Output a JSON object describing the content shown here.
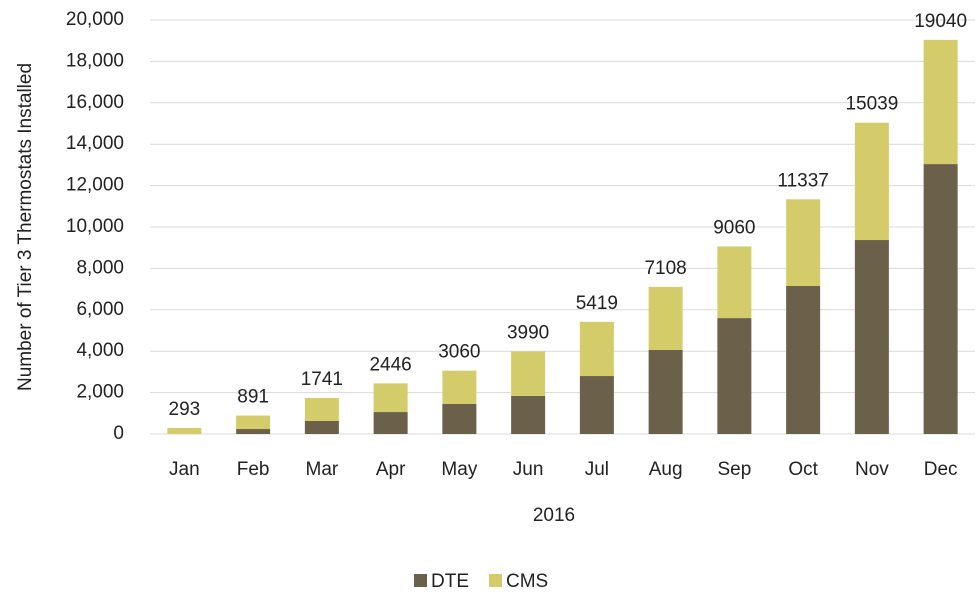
{
  "chart_data": {
    "type": "stacked-bar",
    "y_label": "Number of Tier 3 Thermostats Installed",
    "x_label": "2016",
    "categories": [
      "Jan",
      "Feb",
      "Mar",
      "Apr",
      "May",
      "Jun",
      "Jul",
      "Aug",
      "Sep",
      "Oct",
      "Nov",
      "Dec"
    ],
    "series": [
      {
        "name": "DTE",
        "color": "#6b604a",
        "values": [
          0,
          240,
          630,
          1060,
          1450,
          1840,
          2800,
          4060,
          5600,
          7150,
          9370,
          13040
        ]
      },
      {
        "name": "CMS",
        "color": "#d4cc6a",
        "values": [
          293,
          651,
          1111,
          1386,
          1610,
          2150,
          2619,
          3048,
          3460,
          4187,
          5669,
          6000
        ]
      }
    ],
    "totals": [
      293,
      891,
      1741,
      2446,
      3060,
      3990,
      5419,
      7108,
      9060,
      11337,
      15039,
      19040
    ],
    "ylim": [
      0,
      20000
    ],
    "yticks": [
      0,
      {
        "value": 2000,
        "label": "2,000"
      },
      {
        "value": 4000,
        "label": "4,000"
      },
      {
        "value": 6000,
        "label": "6,000"
      },
      {
        "value": 8000,
        "label": "8,000"
      },
      {
        "value": 10000,
        "label": "10,000"
      },
      {
        "value": 12000,
        "label": "12,000"
      },
      {
        "value": 14000,
        "label": "14,000"
      },
      {
        "value": 16000,
        "label": "16,000"
      },
      {
        "value": 18000,
        "label": "18,000"
      },
      {
        "value": 20000,
        "label": "20,000"
      }
    ],
    "grid": true,
    "legend": "bottom"
  }
}
